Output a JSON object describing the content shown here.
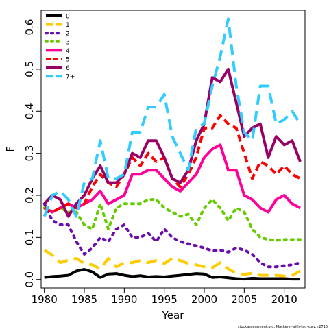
{
  "chart_data": {
    "type": "line",
    "title": "",
    "xlabel": "Year",
    "ylabel": "F",
    "xlim": [
      1979.6,
      2012.6
    ],
    "ylim": [
      -0.02,
      0.64
    ],
    "x_ticks": [
      1980,
      1985,
      1990,
      1995,
      2000,
      2005,
      2010
    ],
    "y_ticks": [
      0.0,
      0.1,
      0.2,
      0.3,
      0.4,
      0.5,
      0.6
    ],
    "y_tick_labels": [
      "0.0",
      "0.1",
      "0.2",
      "0.3",
      "0.4",
      "0.5",
      "0.6"
    ],
    "grid": false,
    "legend_position": "top-left",
    "footnote": "stockassessment.org, Mackerel-with-tag-surv, r2716",
    "x": [
      1980,
      1981,
      1982,
      1983,
      1984,
      1985,
      1986,
      1987,
      1988,
      1989,
      1990,
      1991,
      1992,
      1993,
      1994,
      1995,
      1996,
      1997,
      1998,
      1999,
      2000,
      2001,
      2002,
      2003,
      2004,
      2005,
      2006,
      2007,
      2008,
      2009,
      2010,
      2011,
      2012
    ],
    "series": [
      {
        "name": "0",
        "color": "#000000",
        "dash": "solid",
        "values": [
          0.005,
          0.007,
          0.008,
          0.01,
          0.02,
          0.024,
          0.018,
          0.005,
          0.013,
          0.014,
          0.01,
          0.007,
          0.009,
          0.006,
          0.007,
          0.006,
          0.008,
          0.01,
          0.012,
          0.014,
          0.013,
          0.005,
          0.006,
          0.004,
          0.002,
          0.001,
          0.003,
          0.002,
          0.002,
          0.002,
          0.002,
          0.001,
          0.001
        ]
      },
      {
        "name": "1",
        "color": "#FFCC00",
        "dash": "long",
        "values": [
          0.07,
          0.058,
          0.04,
          0.046,
          0.05,
          0.038,
          0.035,
          0.025,
          0.05,
          0.03,
          0.04,
          0.04,
          0.045,
          0.04,
          0.045,
          0.038,
          0.05,
          0.045,
          0.038,
          0.035,
          0.03,
          0.028,
          0.04,
          0.025,
          0.015,
          0.012,
          0.015,
          0.01,
          0.01,
          0.01,
          0.008,
          0.01,
          0.02
        ]
      },
      {
        "name": "2",
        "color": "#6A0DAD",
        "dash": "dot",
        "values": [
          0.18,
          0.14,
          0.13,
          0.13,
          0.09,
          0.06,
          0.075,
          0.1,
          0.09,
          0.12,
          0.13,
          0.1,
          0.1,
          0.11,
          0.09,
          0.12,
          0.1,
          0.09,
          0.085,
          0.08,
          0.075,
          0.068,
          0.07,
          0.065,
          0.075,
          0.07,
          0.06,
          0.04,
          0.03,
          0.03,
          0.033,
          0.035,
          0.04
        ]
      },
      {
        "name": "3",
        "color": "#66CC00",
        "dash": "dot",
        "values": [
          0.17,
          0.16,
          0.17,
          0.16,
          0.16,
          0.13,
          0.12,
          0.18,
          0.12,
          0.17,
          0.18,
          0.18,
          0.18,
          0.19,
          0.19,
          0.17,
          0.16,
          0.15,
          0.155,
          0.13,
          0.17,
          0.19,
          0.17,
          0.14,
          0.17,
          0.16,
          0.12,
          0.1,
          0.095,
          0.093,
          0.095,
          0.095,
          0.095
        ]
      },
      {
        "name": "4",
        "color": "#FF0099",
        "dash": "solid",
        "values": [
          0.17,
          0.16,
          0.17,
          0.18,
          0.17,
          0.18,
          0.19,
          0.21,
          0.18,
          0.19,
          0.2,
          0.25,
          0.25,
          0.26,
          0.26,
          0.24,
          0.22,
          0.21,
          0.23,
          0.25,
          0.29,
          0.31,
          0.32,
          0.26,
          0.26,
          0.2,
          0.19,
          0.17,
          0.16,
          0.19,
          0.2,
          0.18,
          0.17
        ]
      },
      {
        "name": "5",
        "color": "#FF0000",
        "dash": "medium",
        "values": [
          0.17,
          0.16,
          0.17,
          0.18,
          0.17,
          0.18,
          0.22,
          0.25,
          0.23,
          0.22,
          0.25,
          0.29,
          0.27,
          0.3,
          0.28,
          0.29,
          0.24,
          0.22,
          0.25,
          0.29,
          0.36,
          0.36,
          0.39,
          0.37,
          0.36,
          0.3,
          0.24,
          0.28,
          0.27,
          0.25,
          0.27,
          0.25,
          0.24
        ]
      },
      {
        "name": "6",
        "color": "#990066",
        "dash": "solid",
        "values": [
          0.18,
          0.2,
          0.19,
          0.15,
          0.18,
          0.2,
          0.24,
          0.27,
          0.23,
          0.23,
          0.25,
          0.3,
          0.29,
          0.33,
          0.33,
          0.29,
          0.24,
          0.23,
          0.26,
          0.33,
          0.37,
          0.48,
          0.47,
          0.5,
          0.42,
          0.34,
          0.36,
          0.37,
          0.29,
          0.34,
          0.32,
          0.33,
          0.28
        ]
      },
      {
        "name": "7+",
        "color": "#33CCFF",
        "dash": "long",
        "values": [
          0.15,
          0.2,
          0.21,
          0.19,
          0.15,
          0.23,
          0.24,
          0.33,
          0.24,
          0.24,
          0.25,
          0.35,
          0.35,
          0.41,
          0.41,
          0.44,
          0.34,
          0.3,
          0.26,
          0.36,
          0.37,
          0.46,
          0.53,
          0.62,
          0.46,
          0.35,
          0.33,
          0.46,
          0.46,
          0.37,
          0.38,
          0.4,
          0.37
        ]
      }
    ]
  }
}
